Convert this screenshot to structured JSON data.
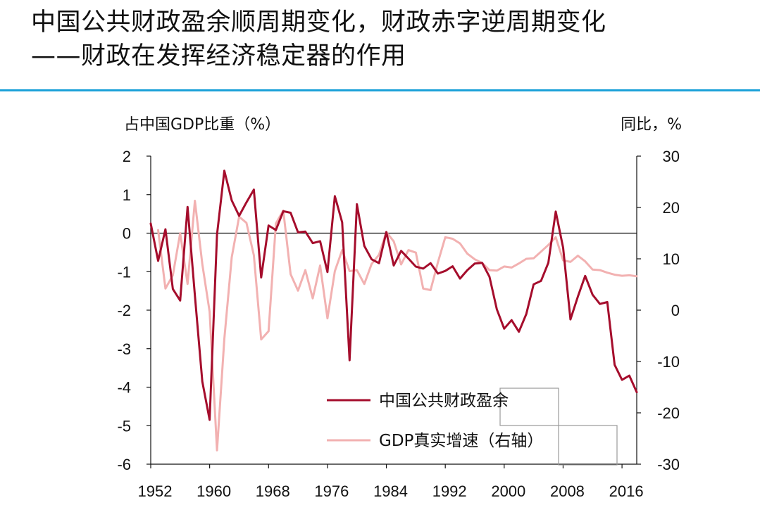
{
  "title": {
    "line1": "中国公共财政盈余顺周期变化，财政赤字逆周期变化",
    "line2": "——财政在发挥经济稳定器的作用"
  },
  "colors": {
    "header_rule": "#1ba1d9",
    "surplus_series": "#a50d2c",
    "gdp_series": "#f2b1b1"
  },
  "chart_data": {
    "type": "line",
    "left_axis_label": "占中国GDP比重（%）",
    "right_axis_label": "同比，%",
    "ylim_left": [
      -6,
      2
    ],
    "yticks_left": [
      "2",
      "1",
      "0",
      "-1",
      "-2",
      "-3",
      "-4",
      "-5",
      "-6"
    ],
    "ylim_right": [
      -30,
      30
    ],
    "yticks_right": [
      "30",
      "20",
      "10",
      "0",
      "-10",
      "-20",
      "-30"
    ],
    "x_range": [
      1952,
      2018
    ],
    "xticks": [
      "1952",
      "1960",
      "1968",
      "1976",
      "1984",
      "1992",
      "2000",
      "2008",
      "2016"
    ],
    "legend": [
      "中国公共财政盈余",
      "GDP真实增速（右轴）"
    ],
    "series": [
      {
        "name": "中国公共财政盈余",
        "axis": "left",
        "x": [
          1952,
          1953,
          1954,
          1955,
          1956,
          1957,
          1958,
          1959,
          1960,
          1961,
          1962,
          1963,
          1964,
          1965,
          1966,
          1967,
          1968,
          1969,
          1970,
          1971,
          1972,
          1973,
          1974,
          1975,
          1976,
          1977,
          1978,
          1979,
          1980,
          1981,
          1982,
          1983,
          1984,
          1985,
          1986,
          1987,
          1988,
          1989,
          1990,
          1991,
          1992,
          1993,
          1994,
          1995,
          1996,
          1997,
          1998,
          1999,
          2000,
          2001,
          2002,
          2003,
          2004,
          2005,
          2006,
          2007,
          2008,
          2009,
          2010,
          2011,
          2012,
          2013,
          2014,
          2015,
          2016,
          2017,
          2018
        ],
        "values": [
          0.25,
          -0.72,
          0.1,
          -1.45,
          -1.75,
          0.68,
          -1.62,
          -3.85,
          -4.85,
          -0.04,
          1.62,
          0.85,
          0.45,
          0.8,
          1.13,
          -1.15,
          0.2,
          0.08,
          0.57,
          0.53,
          0.02,
          0.04,
          -0.26,
          -0.21,
          -1.01,
          0.96,
          0.28,
          -3.3,
          0.75,
          -0.33,
          -0.68,
          -0.78,
          0.03,
          -0.84,
          -0.46,
          -0.66,
          -0.87,
          -0.92,
          -0.78,
          -1.05,
          -0.98,
          -0.86,
          -1.18,
          -0.96,
          -0.79,
          -0.77,
          -1.13,
          -1.98,
          -2.48,
          -2.26,
          -2.56,
          -2.1,
          -1.33,
          -1.24,
          -0.77,
          0.56,
          -0.38,
          -2.24,
          -1.65,
          -1.11,
          -1.6,
          -1.84,
          -1.79,
          -3.42,
          -3.81,
          -3.7,
          -4.13
        ]
      },
      {
        "name": "GDP真实增速（右轴）",
        "axis": "right",
        "x": [
          1953,
          1954,
          1955,
          1956,
          1957,
          1958,
          1959,
          1960,
          1961,
          1962,
          1963,
          1964,
          1965,
          1966,
          1967,
          1968,
          1969,
          1970,
          1971,
          1972,
          1973,
          1974,
          1975,
          1976,
          1977,
          1978,
          1979,
          1980,
          1981,
          1982,
          1983,
          1984,
          1985,
          1986,
          1987,
          1988,
          1989,
          1990,
          1991,
          1992,
          1993,
          1994,
          1995,
          1996,
          1997,
          1998,
          1999,
          2000,
          2001,
          2002,
          2003,
          2004,
          2005,
          2006,
          2007,
          2008,
          2009,
          2010,
          2011,
          2012,
          2013,
          2014,
          2015,
          2016,
          2017,
          2018
        ],
        "values": [
          15.6,
          4.2,
          6.8,
          15,
          5.1,
          21.3,
          9,
          -0.3,
          -27.3,
          -5.6,
          10.3,
          18.2,
          17,
          10.7,
          -5.7,
          -4.1,
          16.9,
          19.4,
          7,
          3.8,
          7.8,
          2.3,
          8.7,
          -1.6,
          7.6,
          11.7,
          7.6,
          7.8,
          5.1,
          9,
          10.8,
          15.2,
          13.4,
          8.9,
          11.7,
          11.2,
          4.2,
          3.9,
          9.3,
          14.2,
          13.9,
          13,
          11,
          9.9,
          9.2,
          7.8,
          7.7,
          8.5,
          8.3,
          9.1,
          10,
          10.1,
          11.4,
          12.7,
          14.2,
          9.7,
          9.4,
          10.6,
          9.5,
          7.9,
          7.8,
          7.3,
          6.9,
          6.7,
          6.8,
          6.6
        ]
      }
    ]
  }
}
